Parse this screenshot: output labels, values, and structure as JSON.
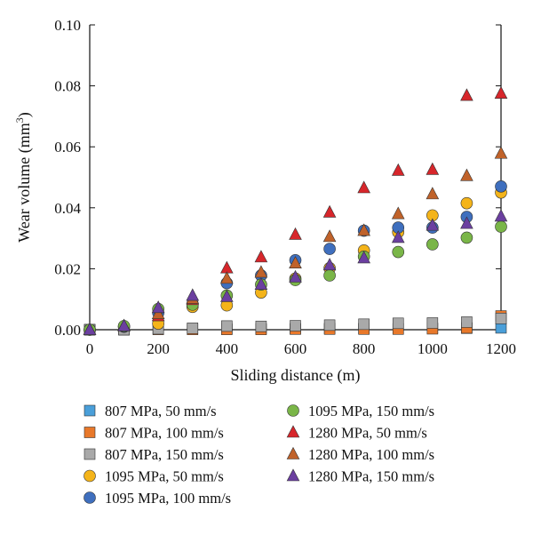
{
  "chart_data": {
    "type": "scatter",
    "title": "",
    "xlabel": "Sliding distance (m)",
    "ylabel_main": "Wear volume (mm",
    "ylabel_sup": "3",
    "ylabel_close": ")",
    "xlim": [
      0,
      1200
    ],
    "ylim": [
      0,
      0.1
    ],
    "xticks": [
      0,
      200,
      400,
      600,
      800,
      1000,
      1200
    ],
    "xtick_labels": [
      "0",
      "200",
      "400",
      "600",
      "800",
      "1000",
      "1200"
    ],
    "yticks": [
      0,
      0.02,
      0.04,
      0.06,
      0.08,
      0.1
    ],
    "ytick_labels": [
      "0.00",
      "0.02",
      "0.04",
      "0.06",
      "0.08",
      "0.10"
    ],
    "grid": false,
    "legend_position": "below",
    "x": [
      0,
      100,
      200,
      300,
      400,
      500,
      600,
      700,
      800,
      900,
      1000,
      1100,
      1200
    ],
    "series": [
      {
        "name": "807 MPa, 50 mm/s",
        "marker": "square",
        "color": "#4a9fd9",
        "values": [
          0,
          0,
          0.0002,
          0.0002,
          0.0003,
          0.0003,
          0.0003,
          0.0004,
          0.0004,
          0.0004,
          0.0005,
          0.0005,
          0.0006
        ]
      },
      {
        "name": "807 MPa, 100 mm/s",
        "marker": "square",
        "color": "#e8782a",
        "values": [
          0,
          0,
          0.0001,
          0.0001,
          0.0001,
          0.0001,
          0.0002,
          0.0002,
          0.0002,
          0.0002,
          0.0003,
          0.0006,
          0.0045
        ]
      },
      {
        "name": "807 MPa, 150 mm/s",
        "marker": "square",
        "color": "#a9a9a9",
        "values": [
          0,
          0,
          0.0003,
          0.0005,
          0.0012,
          0.0011,
          0.0013,
          0.0015,
          0.0018,
          0.0021,
          0.0022,
          0.0025,
          0.0037
        ]
      },
      {
        "name": "1095 MPa, 50 mm/s",
        "marker": "circle",
        "color": "#f4b41a",
        "values": [
          0,
          0.001,
          0.002,
          0.0075,
          0.008,
          0.0122,
          0.0168,
          0.0202,
          0.026,
          0.032,
          0.0375,
          0.0415,
          0.045
        ]
      },
      {
        "name": "1095 MPa, 100 mm/s",
        "marker": "circle",
        "color": "#3f6fbe",
        "values": [
          0,
          0.001,
          0.0055,
          0.0085,
          0.0153,
          0.0178,
          0.0228,
          0.0265,
          0.0325,
          0.0335,
          0.0335,
          0.037,
          0.047
        ]
      },
      {
        "name": "1095 MPa, 150 mm/s",
        "marker": "circle",
        "color": "#7ab648",
        "values": [
          0,
          0.0012,
          0.0068,
          0.0082,
          0.0112,
          0.0148,
          0.0163,
          0.0178,
          0.024,
          0.0255,
          0.028,
          0.0302,
          0.0338
        ]
      },
      {
        "name": "1280 MPa, 50 mm/s",
        "marker": "triangle",
        "color": "#d7262b",
        "values": [
          0,
          0.0012,
          0.0045,
          0.0098,
          0.0202,
          0.0238,
          0.0312,
          0.0385,
          0.0465,
          0.0522,
          0.0525,
          0.0768,
          0.0775
        ]
      },
      {
        "name": "1280 MPa, 100 mm/s",
        "marker": "triangle",
        "color": "#c0622a",
        "values": [
          0,
          0.0012,
          0.0052,
          0.0102,
          0.0168,
          0.0188,
          0.0218,
          0.0305,
          0.0325,
          0.038,
          0.0445,
          0.0505,
          0.0578
        ]
      },
      {
        "name": "1280 MPa, 150 mm/s",
        "marker": "triangle",
        "color": "#6b3fa0",
        "values": [
          0,
          0.0012,
          0.0072,
          0.0112,
          0.0108,
          0.0148,
          0.0172,
          0.0212,
          0.0235,
          0.0302,
          0.0342,
          0.0348,
          0.0372
        ]
      }
    ]
  }
}
